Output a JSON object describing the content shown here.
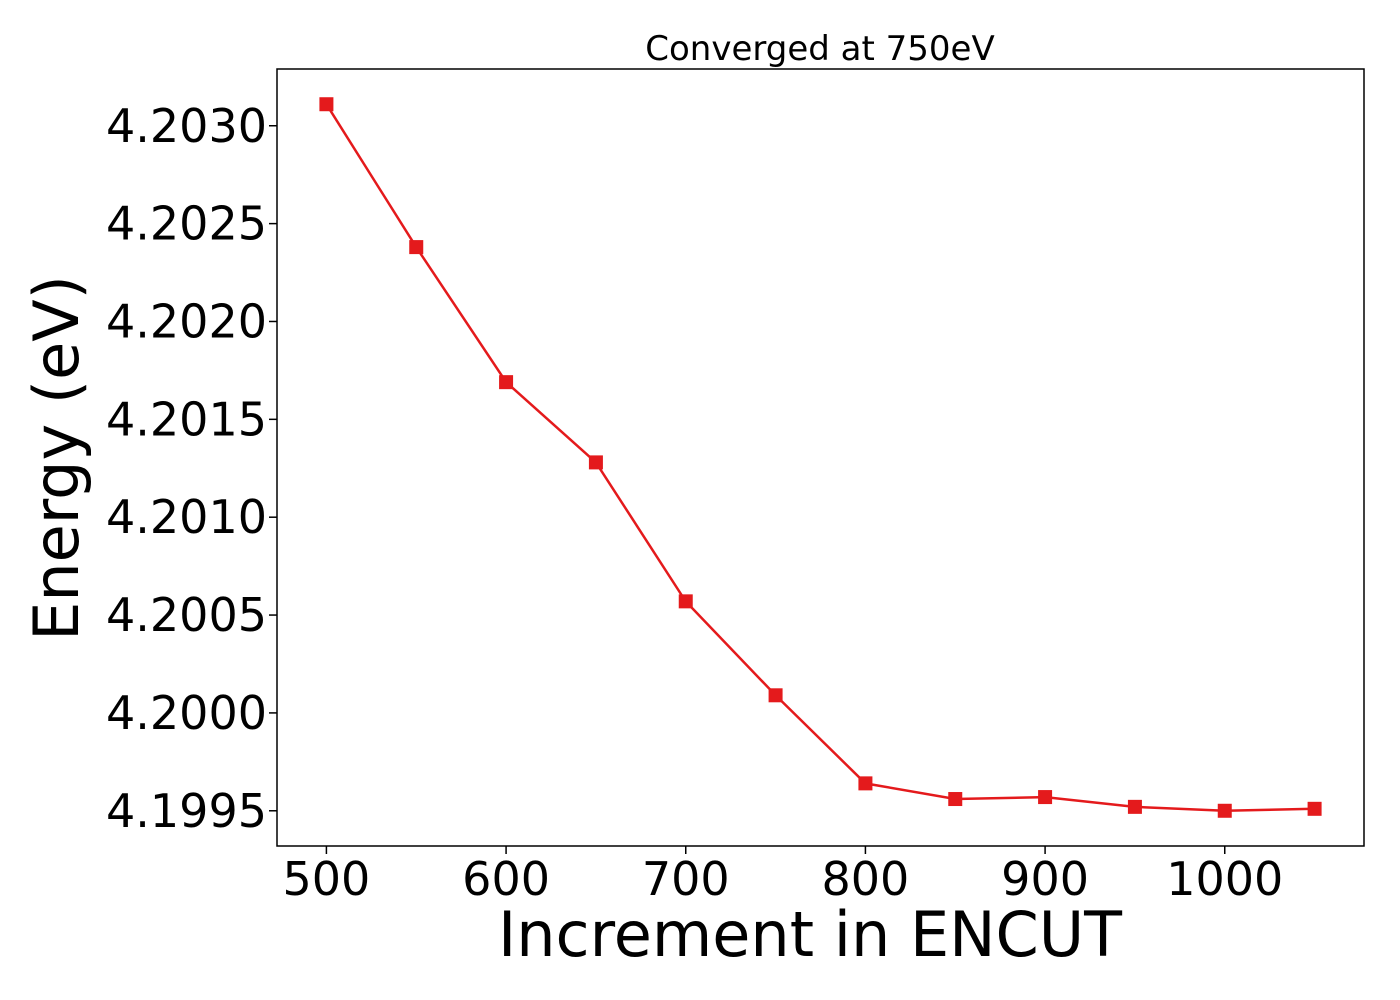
{
  "chart_data": {
    "type": "line",
    "title": "Converged at 750eV",
    "xlabel": "Increment in ENCUT",
    "ylabel": "Energy (eV)",
    "x": [
      500,
      550,
      600,
      650,
      700,
      750,
      800,
      850,
      900,
      950,
      1000,
      1050
    ],
    "series": [
      {
        "values": [
          4.20311,
          4.20238,
          4.20169,
          4.20128,
          4.20057,
          4.20009,
          4.19964,
          4.19956,
          4.19957,
          4.19952,
          4.1995,
          4.19951
        ],
        "color": "#e41a1c",
        "marker": "square"
      }
    ],
    "xlim": [
      472.5,
      1077.5
    ],
    "ylim": [
      4.19932,
      4.20329
    ],
    "xticks": [
      500,
      600,
      700,
      800,
      900,
      1000
    ],
    "xtick_labels": [
      "500",
      "600",
      "700",
      "800",
      "900",
      "1000"
    ],
    "yticks": [
      4.1995,
      4.2,
      4.2005,
      4.201,
      4.2015,
      4.202,
      4.2025,
      4.203
    ],
    "ytick_labels": [
      "4.1995",
      "4.2000",
      "4.2005",
      "4.2010",
      "4.2015",
      "4.2020",
      "4.2025",
      "4.2030"
    ],
    "grid": false,
    "legend": "none"
  }
}
